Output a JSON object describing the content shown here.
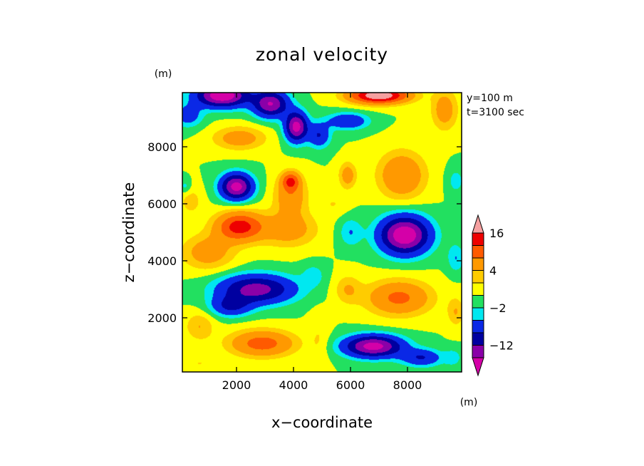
{
  "chart_data": {
    "type": "heatmap",
    "title": "zonal velocity",
    "xlabel": "x−coordinate",
    "ylabel": "z−coordinate",
    "y_unit": "(m)",
    "x_unit": "(m)",
    "annotations": [
      "y=100 m",
      "t=3100 sec"
    ],
    "xlim": [
      100,
      9900
    ],
    "ylim": [
      100,
      9900
    ],
    "x_ticks": [
      {
        "value": 2000,
        "label": "2000"
      },
      {
        "value": 4000,
        "label": "4000"
      },
      {
        "value": 6000,
        "label": "6000"
      },
      {
        "value": 8000,
        "label": "8000"
      }
    ],
    "y_ticks": [
      {
        "value": 2000,
        "label": "2000"
      },
      {
        "value": 4000,
        "label": "4000"
      },
      {
        "value": 6000,
        "label": "6000"
      },
      {
        "value": 8000,
        "label": "8000"
      }
    ],
    "colorbar": {
      "bins": [
        {
          "color": "#d400a8"
        },
        {
          "color": "#8a00a8"
        },
        {
          "color": "#0000a0"
        },
        {
          "color": "#0a28e6"
        },
        {
          "color": "#00e8f0"
        },
        {
          "color": "#22e060"
        },
        {
          "color": "#ffff00"
        },
        {
          "color": "#ffcc00"
        },
        {
          "color": "#ff9900"
        },
        {
          "color": "#ff5a00"
        },
        {
          "color": "#ee0000"
        },
        {
          "color": "#f5a0a0"
        }
      ],
      "labels": [
        {
          "value": -12,
          "label": "−12"
        },
        {
          "value": -2,
          "label": "−2"
        },
        {
          "value": 4,
          "label": "4"
        },
        {
          "value": 16,
          "label": "16"
        }
      ],
      "levels": [
        -16,
        -12,
        -8,
        -4,
        -2,
        0,
        2,
        4,
        8,
        12,
        16
      ]
    },
    "features": [
      {
        "x": 1500,
        "z": 9800,
        "v": -20,
        "sx": 900,
        "sz": 400
      },
      {
        "x": 3200,
        "z": 9500,
        "v": -16,
        "sx": 600,
        "sz": 450
      },
      {
        "x": 4100,
        "z": 8700,
        "v": -18,
        "sx": 380,
        "sz": 500
      },
      {
        "x": 4900,
        "z": 8400,
        "v": -8,
        "sx": 380,
        "sz": 420
      },
      {
        "x": 5900,
        "z": 8900,
        "v": -8,
        "sx": 700,
        "sz": 280
      },
      {
        "x": 7000,
        "z": 9800,
        "v": 20,
        "sx": 1000,
        "sz": 280
      },
      {
        "x": 9300,
        "z": 9300,
        "v": 6,
        "sx": 450,
        "sz": 700
      },
      {
        "x": 300,
        "z": 9100,
        "v": -6,
        "sx": 500,
        "sz": 400
      },
      {
        "x": 2100,
        "z": 8300,
        "v": 6,
        "sx": 900,
        "sz": 400
      },
      {
        "x": 5900,
        "z": 7000,
        "v": 6,
        "sx": 300,
        "sz": 450
      },
      {
        "x": 7800,
        "z": 7000,
        "v": 8,
        "sx": 800,
        "sz": 800
      },
      {
        "x": 9700,
        "z": 6800,
        "v": -3,
        "sx": 300,
        "sz": 450
      },
      {
        "x": 2000,
        "z": 6600,
        "v": -18,
        "sx": 550,
        "sz": 450
      },
      {
        "x": 3900,
        "z": 6800,
        "v": 10,
        "sx": 300,
        "sz": 300
      },
      {
        "x": 3900,
        "z": 6300,
        "v": 7,
        "sx": 550,
        "sz": 700
      },
      {
        "x": 2100,
        "z": 5200,
        "v": 14,
        "sx": 800,
        "sz": 500
      },
      {
        "x": 1000,
        "z": 4300,
        "v": 6,
        "sx": 900,
        "sz": 600
      },
      {
        "x": 3800,
        "z": 5100,
        "v": 6,
        "sx": 1000,
        "sz": 600
      },
      {
        "x": 400,
        "z": 6100,
        "v": 3,
        "sx": 400,
        "sz": 500
      },
      {
        "x": 200,
        "z": 6600,
        "v": -3,
        "sx": 200,
        "sz": 250
      },
      {
        "x": 5400,
        "z": 6000,
        "v": 2,
        "sx": 500,
        "sz": 400
      },
      {
        "x": 6000,
        "z": 5000,
        "v": -4,
        "sx": 400,
        "sz": 500
      },
      {
        "x": 7900,
        "z": 4900,
        "v": -20,
        "sx": 850,
        "sz": 650
      },
      {
        "x": 9700,
        "z": 4100,
        "v": -4,
        "sx": 300,
        "sz": 500
      },
      {
        "x": 2700,
        "z": 3000,
        "v": -14,
        "sx": 1300,
        "sz": 500
      },
      {
        "x": 1800,
        "z": 2400,
        "v": -8,
        "sx": 700,
        "sz": 350
      },
      {
        "x": 4700,
        "z": 3500,
        "v": -3,
        "sx": 400,
        "sz": 400
      },
      {
        "x": 7700,
        "z": 2700,
        "v": 9,
        "sx": 1100,
        "sz": 600
      },
      {
        "x": 5900,
        "z": 3000,
        "v": 4,
        "sx": 450,
        "sz": 500
      },
      {
        "x": 2900,
        "z": 1100,
        "v": 10,
        "sx": 1100,
        "sz": 450
      },
      {
        "x": 700,
        "z": 1700,
        "v": 4,
        "sx": 500,
        "sz": 500
      },
      {
        "x": 6800,
        "z": 1000,
        "v": -18,
        "sx": 1000,
        "sz": 380
      },
      {
        "x": 8500,
        "z": 600,
        "v": -8,
        "sx": 700,
        "sz": 300
      },
      {
        "x": 9600,
        "z": 600,
        "v": -3,
        "sx": 300,
        "sz": 300
      },
      {
        "x": 4900,
        "z": 1200,
        "v": 2,
        "sx": 350,
        "sz": 900
      },
      {
        "x": 700,
        "z": 400,
        "v": 2,
        "sx": 600,
        "sz": 300
      },
      {
        "x": 9700,
        "z": 2200,
        "v": 4,
        "sx": 300,
        "sz": 500
      }
    ]
  }
}
